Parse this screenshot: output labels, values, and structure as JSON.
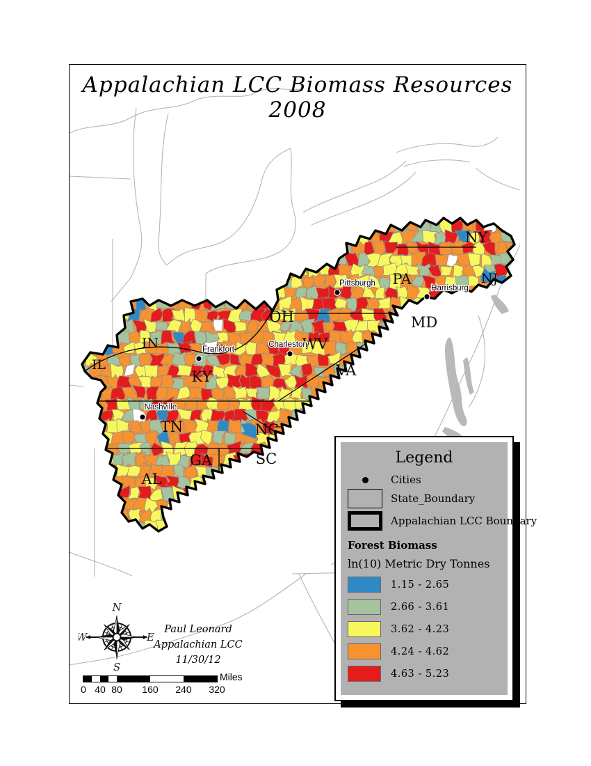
{
  "title": "Appalachian LCC Biomass Resources 2008",
  "map": {
    "state_labels": [
      "NY",
      "NJ",
      "PA",
      "OH",
      "MD",
      "WV",
      "VA",
      "KY",
      "IN",
      "IL",
      "TN",
      "NC",
      "SC",
      "GA",
      "AL"
    ],
    "city_labels": [
      "Pittsburgh",
      "Harrisburg",
      "Charleston",
      "Frankfort",
      "Nashville"
    ]
  },
  "legend": {
    "title": "Legend",
    "cities_label": "Cities",
    "state_boundary_label": "State_Boundary",
    "lcc_boundary_label": "Appalachian LCC Boundary",
    "section_title": "Forest Biomass",
    "units_label": "ln(10) Metric Dry Tonnes",
    "classes": [
      {
        "range": "1.15 - 2.65",
        "color": "#2f89c5"
      },
      {
        "range": "2.66 - 3.61",
        "color": "#a5c39e"
      },
      {
        "range": "3.62 - 4.23",
        "color": "#f8f85e"
      },
      {
        "range": "4.24 - 4.62",
        "color": "#f79231"
      },
      {
        "range": "4.63 - 5.23",
        "color": "#e41c1c"
      }
    ]
  },
  "compass": {
    "n": "N",
    "e": "E",
    "s": "S",
    "w": "W"
  },
  "attribution": {
    "line1": "Paul Leonard",
    "line2": "Appalachian LCC",
    "line3": "11/30/12"
  },
  "scale_bar": {
    "ticks": [
      "0",
      "40",
      "80",
      "160",
      "240",
      "320"
    ],
    "unit": "Miles"
  },
  "colors": {
    "county_stroke": "#8c8c8c",
    "background_states": "#b5b5b5",
    "water_gray": "#b9b9b9",
    "panel_gray": "#b2b2b2",
    "white_county": "#ffffff"
  }
}
